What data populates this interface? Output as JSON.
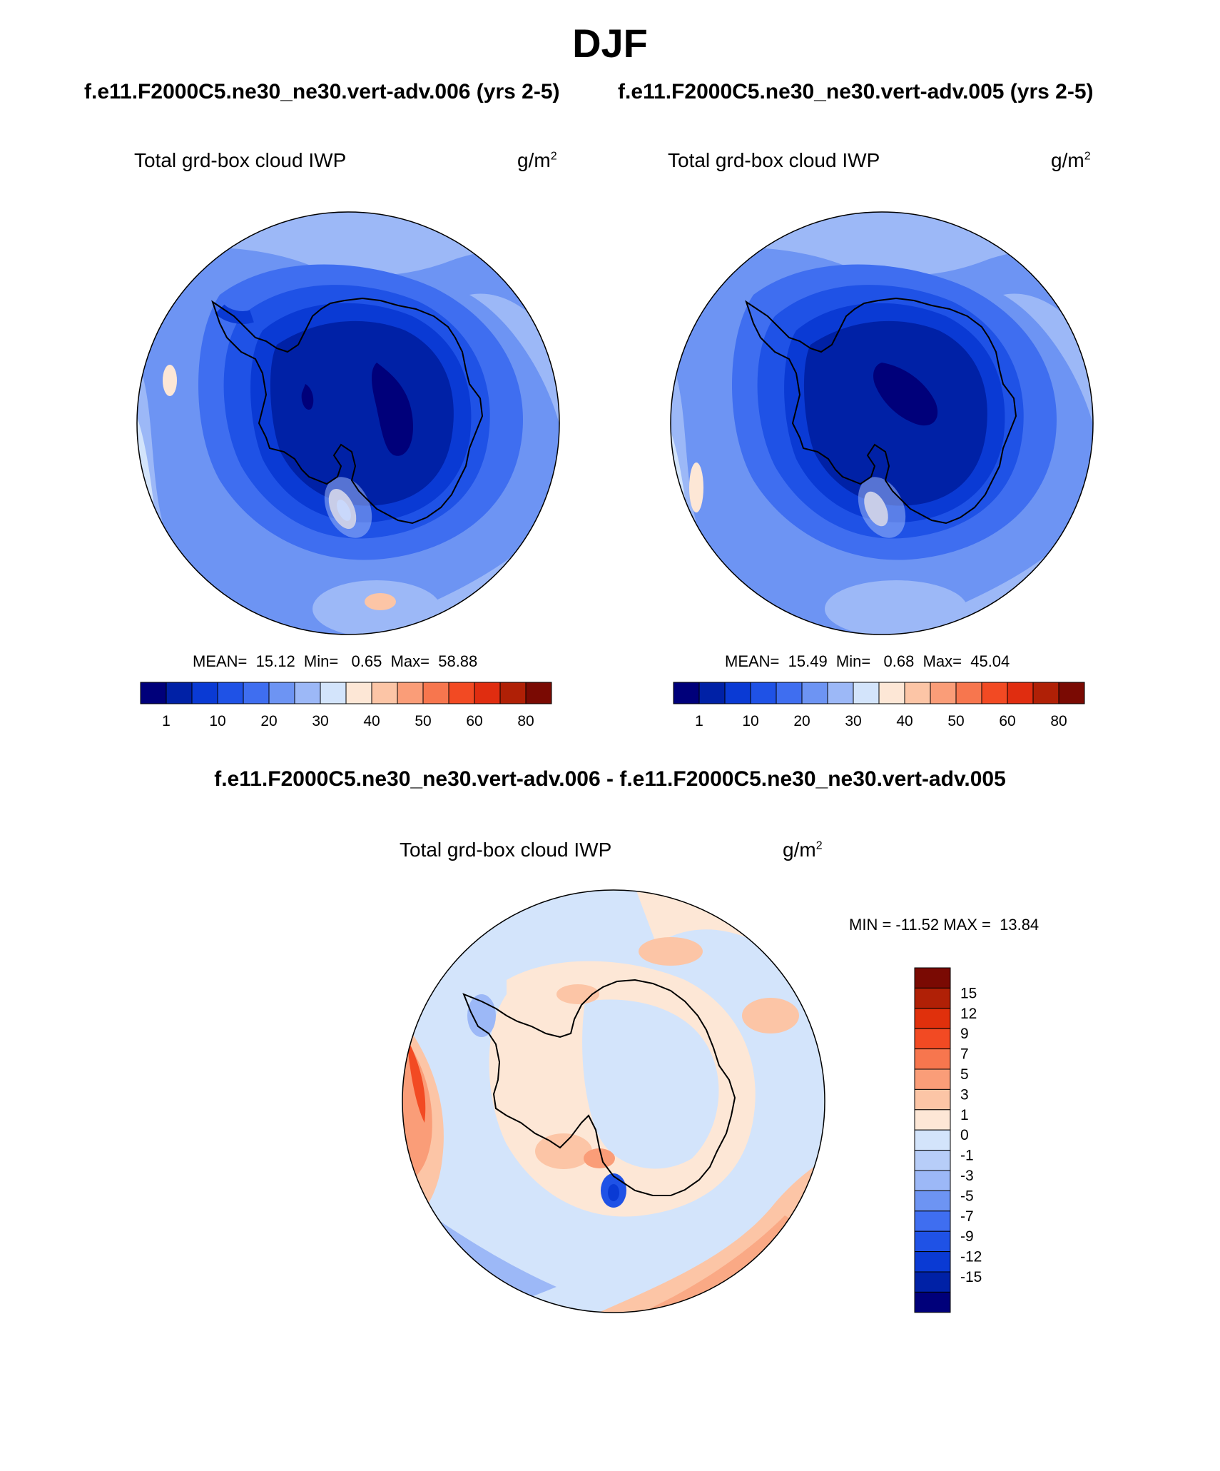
{
  "title": "DJF",
  "panels": [
    {
      "case_title": "f.e11.F2000C5.ne30_ne30.vert-adv.006 (yrs 2-5)",
      "variable": "Total grd-box cloud IWP",
      "units_base": "g/m",
      "units_exp": "2",
      "stats": "MEAN=  15.12  Min=   0.65  Max=  58.88",
      "mean": 15.12,
      "min": 0.65,
      "max": 58.88
    },
    {
      "case_title": "f.e11.F2000C5.ne30_ne30.vert-adv.005 (yrs 2-5)",
      "variable": "Total grd-box cloud IWP",
      "units_base": "g/m",
      "units_exp": "2",
      "stats": "MEAN=  15.49  Min=   0.68  Max=  45.04",
      "mean": 15.49,
      "min": 0.68,
      "max": 45.04
    }
  ],
  "colorbar": {
    "colors": [
      "#00007a",
      "#0021a6",
      "#0a3ad4",
      "#1f52e6",
      "#3f6ef0",
      "#6d94f3",
      "#9cb8f7",
      "#d3e4fb",
      "#fde7d6",
      "#fcc5a6",
      "#fa9d78",
      "#f7764e",
      "#f24a23",
      "#e02d10",
      "#b02006",
      "#7a0a03"
    ],
    "labels": [
      "1",
      "10",
      "20",
      "30",
      "40",
      "50",
      "60",
      "80"
    ]
  },
  "diff": {
    "title": "f.e11.F2000C5.ne30_ne30.vert-adv.006 - f.e11.F2000C5.ne30_ne30.vert-adv.005",
    "variable": "Total grd-box cloud IWP",
    "units_base": "g/m",
    "units_exp": "2",
    "stats": "MIN = -11.52 MAX =  13.84",
    "min": -11.52,
    "max": 13.84,
    "colorbar": {
      "colors": [
        "#7a0a03",
        "#b02006",
        "#e0300c",
        "#f24a23",
        "#f7764e",
        "#fa9d78",
        "#fcc5a6",
        "#fde7d6",
        "#d3e4fb",
        "#b7cdf8",
        "#9cb8f7",
        "#6d94f3",
        "#3f6ef0",
        "#1f52e6",
        "#0a3ad4",
        "#0021a6",
        "#00007a"
      ],
      "labels": [
        "15",
        "12",
        "9",
        "7",
        "5",
        "3",
        "1",
        "0",
        "-1",
        "-3",
        "-5",
        "-7",
        "-9",
        "-12",
        "-15"
      ]
    }
  }
}
